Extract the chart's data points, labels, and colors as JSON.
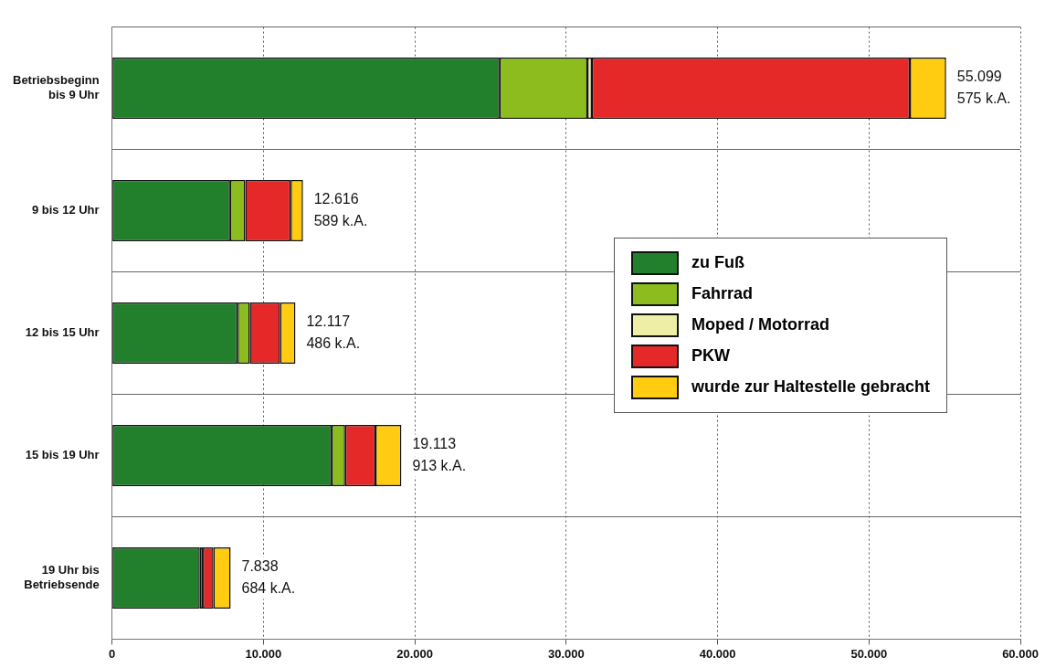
{
  "chart_data": {
    "type": "bar",
    "orientation": "horizontal",
    "stacked": true,
    "categories": [
      "Betriebsbeginn\nbis 9 Uhr",
      "9 bis 12 Uhr",
      "12 bis 15 Uhr",
      "15 bis 19 Uhr",
      "19 Uhr bis\nBetriebsende"
    ],
    "series": [
      {
        "name": "zu Fuß",
        "color": "#22802c",
        "values": [
          25600,
          7800,
          8300,
          14500,
          5800
        ]
      },
      {
        "name": "Fahrrad",
        "color": "#8cbc1e",
        "values": [
          5800,
          1000,
          800,
          900,
          200
        ]
      },
      {
        "name": "Moped / Motorrad",
        "color": "#eeeea6",
        "values": [
          300,
          null,
          null,
          null,
          null
        ]
      },
      {
        "name": "PKW",
        "color": "#e52828",
        "values": [
          21000,
          3000,
          2000,
          2000,
          700
        ]
      },
      {
        "name": "wurde zur Haltestelle gebracht",
        "color": "#ffcc11",
        "values": [
          2399,
          816,
          1017,
          1713,
          1138
        ]
      }
    ],
    "totals": [
      "55.099",
      "12.616",
      "12.117",
      "19.113",
      "7.838"
    ],
    "annotations": [
      "575 k.A.",
      "589 k.A.",
      "486 k.A.",
      "913 k.A.",
      "684 k.A."
    ],
    "xlim": [
      0,
      60000
    ],
    "xticks": [
      0,
      {
        "value": 10000,
        "label": "10.000"
      },
      {
        "value": 20000,
        "label": "20.000"
      },
      {
        "value": 30000,
        "label": "30.000"
      },
      {
        "value": 40000,
        "label": "40.000"
      },
      {
        "value": 50000,
        "label": "50.000"
      },
      {
        "value": 60000,
        "label": "60.000"
      }
    ],
    "grid": true,
    "legend": "right"
  }
}
